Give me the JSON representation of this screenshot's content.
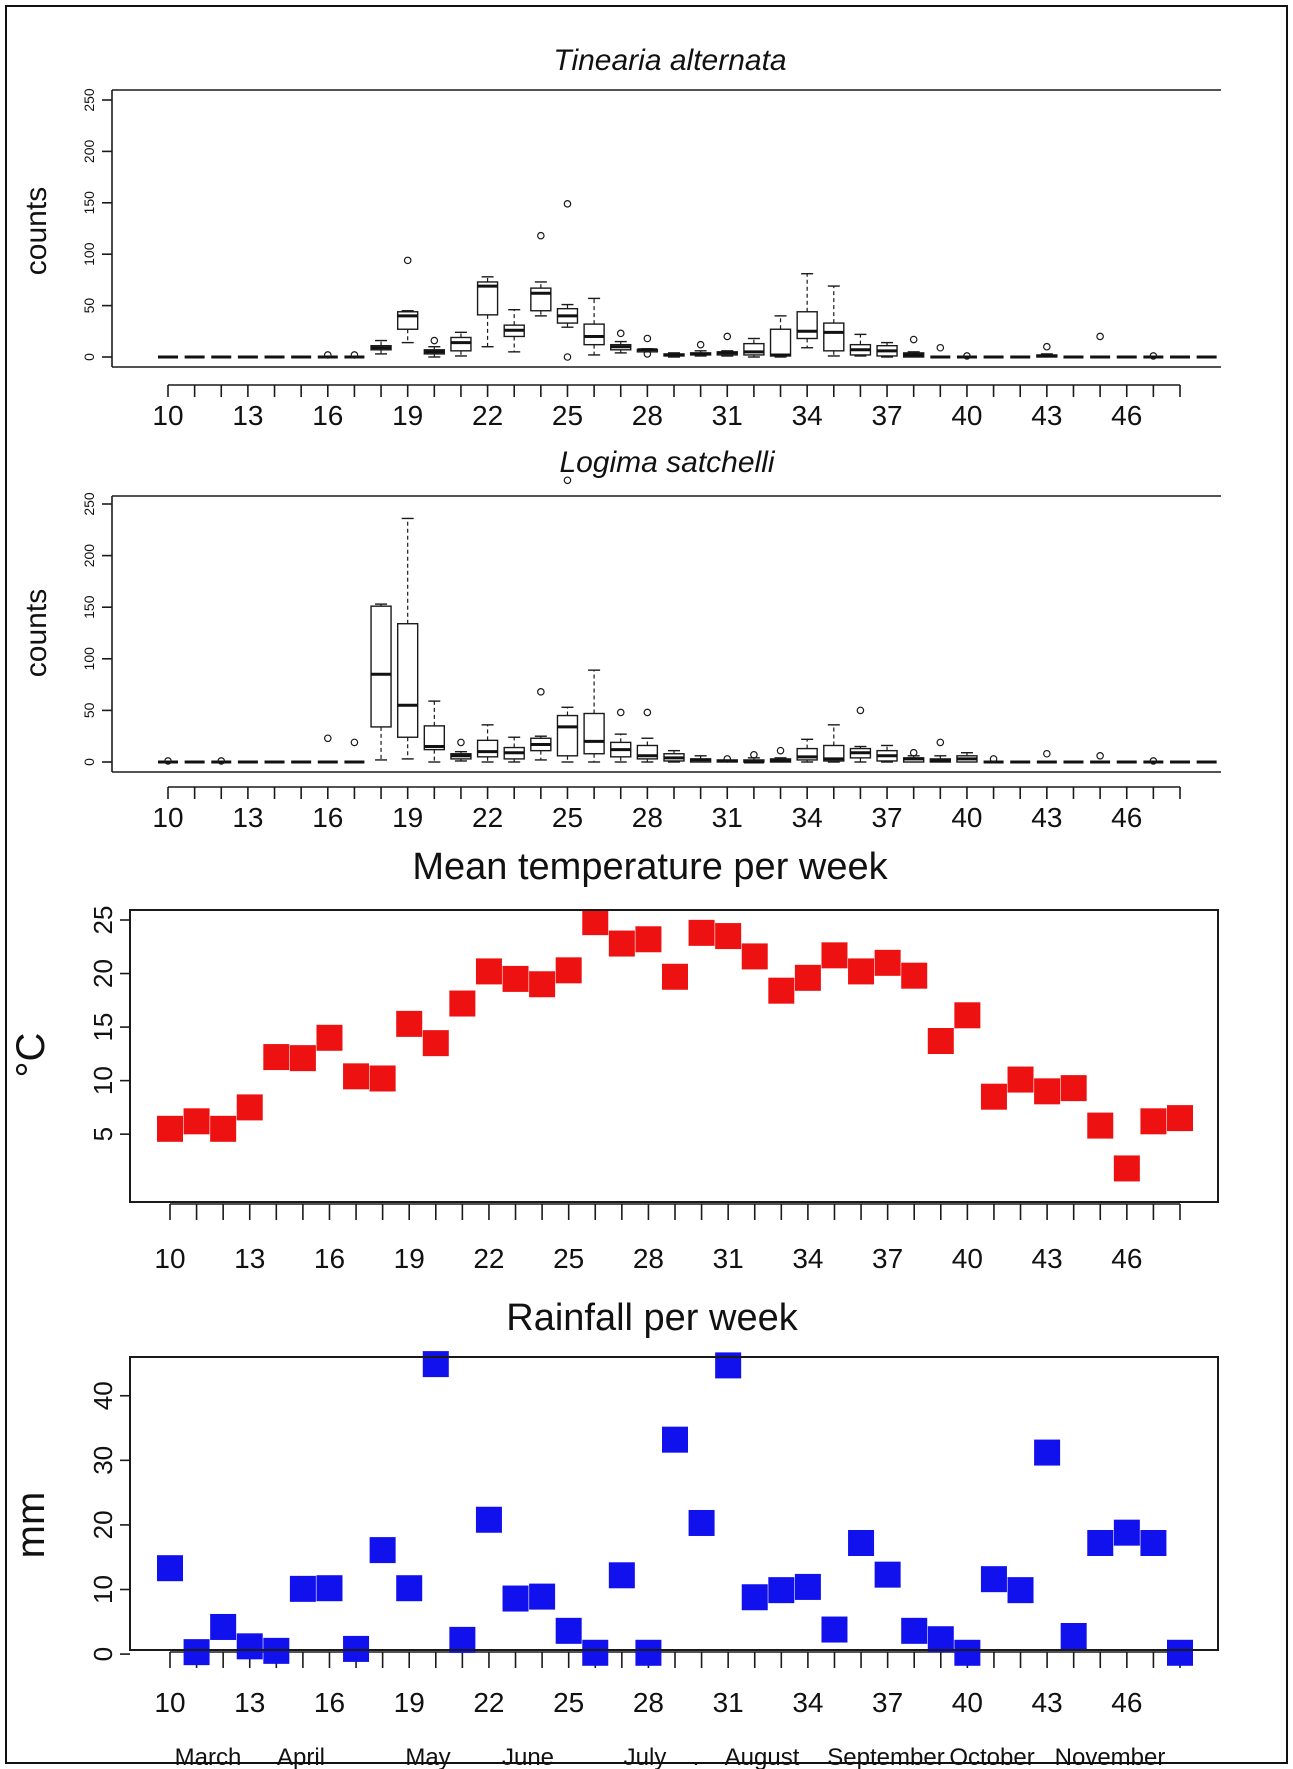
{
  "chart_data": [
    {
      "type": "box",
      "title": "Tinearia alternata",
      "ylabel": "counts",
      "ylim": [
        0,
        250
      ],
      "yticks": [
        0,
        50,
        100,
        150,
        200,
        250
      ],
      "xlim": [
        10,
        48
      ],
      "xticks": [
        10,
        13,
        16,
        19,
        22,
        25,
        28,
        31,
        34,
        37,
        40,
        43,
        46
      ],
      "boxes": [
        {
          "week": 10,
          "q1": 0,
          "med": 0,
          "q3": 0,
          "lo": 0,
          "hi": 0,
          "out": []
        },
        {
          "week": 11,
          "q1": 0,
          "med": 0,
          "q3": 0,
          "lo": 0,
          "hi": 0,
          "out": []
        },
        {
          "week": 12,
          "q1": 0,
          "med": 0,
          "q3": 0,
          "lo": 0,
          "hi": 0,
          "out": []
        },
        {
          "week": 13,
          "q1": 0,
          "med": 0,
          "q3": 0,
          "lo": 0,
          "hi": 0,
          "out": []
        },
        {
          "week": 14,
          "q1": 0,
          "med": 0,
          "q3": 0,
          "lo": 0,
          "hi": 0,
          "out": []
        },
        {
          "week": 15,
          "q1": 0,
          "med": 0,
          "q3": 0,
          "lo": 0,
          "hi": 0,
          "out": []
        },
        {
          "week": 16,
          "q1": 0,
          "med": 0,
          "q3": 0,
          "lo": 0,
          "hi": 0,
          "out": [
            2
          ]
        },
        {
          "week": 17,
          "q1": 0,
          "med": 0,
          "q3": 0,
          "lo": 0,
          "hi": 0,
          "out": [
            2
          ]
        },
        {
          "week": 18,
          "q1": 7,
          "med": 9,
          "q3": 11,
          "lo": 3,
          "hi": 16,
          "out": []
        },
        {
          "week": 19,
          "q1": 27,
          "med": 40,
          "q3": 44,
          "lo": 14,
          "hi": 45,
          "out": [
            94
          ]
        },
        {
          "week": 20,
          "q1": 3,
          "med": 5,
          "q3": 7,
          "lo": 0,
          "hi": 10,
          "out": [
            16
          ]
        },
        {
          "week": 21,
          "q1": 6,
          "med": 14,
          "q3": 19,
          "lo": 1,
          "hi": 24,
          "out": []
        },
        {
          "week": 22,
          "q1": 41,
          "med": 69,
          "q3": 73,
          "lo": 10,
          "hi": 78,
          "out": []
        },
        {
          "week": 23,
          "q1": 20,
          "med": 26,
          "q3": 31,
          "lo": 5,
          "hi": 46,
          "out": []
        },
        {
          "week": 24,
          "q1": 45,
          "med": 62,
          "q3": 67,
          "lo": 40,
          "hi": 73,
          "out": [
            118
          ]
        },
        {
          "week": 25,
          "q1": 33,
          "med": 40,
          "q3": 47,
          "lo": 29,
          "hi": 51,
          "out": [
            149,
            0
          ]
        },
        {
          "week": 26,
          "q1": 12,
          "med": 20,
          "q3": 32,
          "lo": 2,
          "hi": 57,
          "out": []
        },
        {
          "week": 27,
          "q1": 7,
          "med": 10,
          "q3": 12,
          "lo": 4,
          "hi": 15,
          "out": [
            23
          ]
        },
        {
          "week": 28,
          "q1": 5,
          "med": 7,
          "q3": 7,
          "lo": 5,
          "hi": 8,
          "out": [
            18,
            3
          ]
        },
        {
          "week": 29,
          "q1": 1,
          "med": 2,
          "q3": 3,
          "lo": 0,
          "hi": 4,
          "out": []
        },
        {
          "week": 30,
          "q1": 2,
          "med": 3,
          "q3": 4,
          "lo": 1,
          "hi": 6,
          "out": [
            12
          ]
        },
        {
          "week": 31,
          "q1": 2,
          "med": 4,
          "q3": 5,
          "lo": 1,
          "hi": 6,
          "out": [
            20
          ]
        },
        {
          "week": 32,
          "q1": 2,
          "med": 5,
          "q3": 13,
          "lo": 0,
          "hi": 18,
          "out": []
        },
        {
          "week": 33,
          "q1": 1,
          "med": 2,
          "q3": 27,
          "lo": 0,
          "hi": 40,
          "out": []
        },
        {
          "week": 34,
          "q1": 18,
          "med": 25,
          "q3": 44,
          "lo": 9,
          "hi": 81,
          "out": []
        },
        {
          "week": 35,
          "q1": 6,
          "med": 24,
          "q3": 33,
          "lo": 1,
          "hi": 69,
          "out": []
        },
        {
          "week": 36,
          "q1": 2,
          "med": 7,
          "q3": 12,
          "lo": 1,
          "hi": 22,
          "out": []
        },
        {
          "week": 37,
          "q1": 1,
          "med": 6,
          "q3": 11,
          "lo": 0,
          "hi": 14,
          "out": []
        },
        {
          "week": 38,
          "q1": 0,
          "med": 2,
          "q3": 4,
          "lo": 0,
          "hi": 5,
          "out": [
            17
          ]
        },
        {
          "week": 39,
          "q1": 0,
          "med": 0,
          "q3": 0,
          "lo": 0,
          "hi": 0,
          "out": [
            9
          ]
        },
        {
          "week": 40,
          "q1": 0,
          "med": 0,
          "q3": 0,
          "lo": 0,
          "hi": 0,
          "out": [
            1
          ]
        },
        {
          "week": 41,
          "q1": 0,
          "med": 0,
          "q3": 0,
          "lo": 0,
          "hi": 0,
          "out": []
        },
        {
          "week": 42,
          "q1": 0,
          "med": 0,
          "q3": 0,
          "lo": 0,
          "hi": 0,
          "out": []
        },
        {
          "week": 43,
          "q1": 0,
          "med": 1,
          "q3": 2,
          "lo": 0,
          "hi": 3,
          "out": [
            10
          ]
        },
        {
          "week": 44,
          "q1": 0,
          "med": 0,
          "q3": 0,
          "lo": 0,
          "hi": 0,
          "out": []
        },
        {
          "week": 45,
          "q1": 0,
          "med": 0,
          "q3": 0,
          "lo": 0,
          "hi": 0,
          "out": [
            20
          ]
        },
        {
          "week": 46,
          "q1": 0,
          "med": 0,
          "q3": 0,
          "lo": 0,
          "hi": 0,
          "out": []
        },
        {
          "week": 47,
          "q1": 0,
          "med": 0,
          "q3": 0,
          "lo": 0,
          "hi": 0,
          "out": [
            1
          ]
        },
        {
          "week": 48,
          "q1": 0,
          "med": 0,
          "q3": 0,
          "lo": 0,
          "hi": 0,
          "out": []
        },
        {
          "week": 49,
          "q1": 0,
          "med": 0,
          "q3": 0,
          "lo": 0,
          "hi": 0,
          "out": []
        }
      ]
    },
    {
      "type": "box",
      "title": "Logima satchelli",
      "ylabel": "counts",
      "ylim": [
        0,
        250
      ],
      "yticks": [
        0,
        50,
        100,
        150,
        200,
        250
      ],
      "xlim": [
        10,
        48
      ],
      "xticks": [
        10,
        13,
        16,
        19,
        22,
        25,
        28,
        31,
        34,
        37,
        40,
        43,
        46
      ],
      "boxes": [
        {
          "week": 10,
          "q1": 0,
          "med": 0,
          "q3": 0,
          "lo": 0,
          "hi": 0,
          "out": [
            1
          ]
        },
        {
          "week": 11,
          "q1": 0,
          "med": 0,
          "q3": 0,
          "lo": 0,
          "hi": 0,
          "out": []
        },
        {
          "week": 12,
          "q1": 0,
          "med": 0,
          "q3": 0,
          "lo": 0,
          "hi": 0,
          "out": [
            1
          ]
        },
        {
          "week": 13,
          "q1": 0,
          "med": 0,
          "q3": 0,
          "lo": 0,
          "hi": 0,
          "out": []
        },
        {
          "week": 14,
          "q1": 0,
          "med": 0,
          "q3": 0,
          "lo": 0,
          "hi": 0,
          "out": []
        },
        {
          "week": 15,
          "q1": 0,
          "med": 0,
          "q3": 0,
          "lo": 0,
          "hi": 0,
          "out": []
        },
        {
          "week": 16,
          "q1": 0,
          "med": 0,
          "q3": 0,
          "lo": 0,
          "hi": 0,
          "out": [
            23
          ]
        },
        {
          "week": 17,
          "q1": 0,
          "med": 0,
          "q3": 0,
          "lo": 0,
          "hi": 0,
          "out": [
            19
          ]
        },
        {
          "week": 18,
          "q1": 34,
          "med": 85,
          "q3": 151,
          "lo": 2,
          "hi": 153,
          "out": []
        },
        {
          "week": 19,
          "q1": 24,
          "med": 55,
          "q3": 134,
          "lo": 3,
          "hi": 236,
          "out": []
        },
        {
          "week": 20,
          "q1": 12,
          "med": 15,
          "q3": 35,
          "lo": 0,
          "hi": 59,
          "out": []
        },
        {
          "week": 21,
          "q1": 3,
          "med": 6,
          "q3": 8,
          "lo": 1,
          "hi": 10,
          "out": [
            19
          ]
        },
        {
          "week": 22,
          "q1": 5,
          "med": 10,
          "q3": 21,
          "lo": 0,
          "hi": 36,
          "out": []
        },
        {
          "week": 23,
          "q1": 3,
          "med": 9,
          "q3": 14,
          "lo": 0,
          "hi": 24,
          "out": []
        },
        {
          "week": 24,
          "q1": 11,
          "med": 17,
          "q3": 23,
          "lo": 2,
          "hi": 25,
          "out": [
            68
          ]
        },
        {
          "week": 25,
          "q1": 6,
          "med": 34,
          "q3": 45,
          "lo": 0,
          "hi": 53,
          "out": [
            273
          ]
        },
        {
          "week": 26,
          "q1": 8,
          "med": 20,
          "q3": 47,
          "lo": 0,
          "hi": 89,
          "out": []
        },
        {
          "week": 27,
          "q1": 5,
          "med": 12,
          "q3": 19,
          "lo": 0,
          "hi": 27,
          "out": [
            48
          ]
        },
        {
          "week": 28,
          "q1": 3,
          "med": 6,
          "q3": 16,
          "lo": 0,
          "hi": 23,
          "out": [
            48
          ]
        },
        {
          "week": 29,
          "q1": 1,
          "med": 4,
          "q3": 8,
          "lo": 0,
          "hi": 11,
          "out": []
        },
        {
          "week": 30,
          "q1": 0,
          "med": 2,
          "q3": 3,
          "lo": 0,
          "hi": 6,
          "out": []
        },
        {
          "week": 31,
          "q1": 0,
          "med": 1,
          "q3": 2,
          "lo": 0,
          "hi": 2,
          "out": [
            3
          ]
        },
        {
          "week": 32,
          "q1": 0,
          "med": 0,
          "q3": 2,
          "lo": 0,
          "hi": 4,
          "out": [
            7
          ]
        },
        {
          "week": 33,
          "q1": 0,
          "med": 1,
          "q3": 3,
          "lo": 0,
          "hi": 4,
          "out": [
            11
          ]
        },
        {
          "week": 34,
          "q1": 2,
          "med": 5,
          "q3": 13,
          "lo": 0,
          "hi": 22,
          "out": []
        },
        {
          "week": 35,
          "q1": 1,
          "med": 3,
          "q3": 16,
          "lo": 0,
          "hi": 36,
          "out": []
        },
        {
          "week": 36,
          "q1": 4,
          "med": 9,
          "q3": 13,
          "lo": 0,
          "hi": 15,
          "out": [
            50
          ]
        },
        {
          "week": 37,
          "q1": 1,
          "med": 6,
          "q3": 11,
          "lo": 0,
          "hi": 16,
          "out": []
        },
        {
          "week": 38,
          "q1": 0,
          "med": 3,
          "q3": 4,
          "lo": 0,
          "hi": 6,
          "out": [
            9
          ]
        },
        {
          "week": 39,
          "q1": 0,
          "med": 1,
          "q3": 3,
          "lo": 0,
          "hi": 6,
          "out": [
            19
          ]
        },
        {
          "week": 40,
          "q1": 0,
          "med": 3,
          "q3": 6,
          "lo": 0,
          "hi": 9,
          "out": []
        },
        {
          "week": 41,
          "q1": 0,
          "med": 0,
          "q3": 0,
          "lo": 0,
          "hi": 0,
          "out": [
            3
          ]
        },
        {
          "week": 42,
          "q1": 0,
          "med": 0,
          "q3": 0,
          "lo": 0,
          "hi": 0,
          "out": []
        },
        {
          "week": 43,
          "q1": 0,
          "med": 0,
          "q3": 0,
          "lo": 0,
          "hi": 0,
          "out": [
            8
          ]
        },
        {
          "week": 44,
          "q1": 0,
          "med": 0,
          "q3": 0,
          "lo": 0,
          "hi": 0,
          "out": []
        },
        {
          "week": 45,
          "q1": 0,
          "med": 0,
          "q3": 0,
          "lo": 0,
          "hi": 0,
          "out": [
            6
          ]
        },
        {
          "week": 46,
          "q1": 0,
          "med": 0,
          "q3": 0,
          "lo": 0,
          "hi": 0,
          "out": []
        },
        {
          "week": 47,
          "q1": 0,
          "med": 0,
          "q3": 0,
          "lo": 0,
          "hi": 0,
          "out": [
            1
          ]
        },
        {
          "week": 48,
          "q1": 0,
          "med": 0,
          "q3": 0,
          "lo": 0,
          "hi": 0,
          "out": []
        },
        {
          "week": 49,
          "q1": 0,
          "med": 0,
          "q3": 0,
          "lo": 0,
          "hi": 0,
          "out": []
        }
      ]
    },
    {
      "type": "scatter",
      "title": "Mean temperature per week",
      "ylabel": "°C",
      "ylim": [
        1,
        25
      ],
      "yticks": [
        5,
        10,
        15,
        20,
        25
      ],
      "xlim": [
        10,
        48
      ],
      "xticks": [
        10,
        13,
        16,
        19,
        22,
        25,
        28,
        31,
        34,
        37,
        40,
        43,
        46
      ],
      "color": "#ee1111",
      "x": [
        10,
        11,
        12,
        13,
        14,
        15,
        16,
        17,
        18,
        19,
        20,
        21,
        22,
        23,
        24,
        25,
        26,
        27,
        28,
        29,
        30,
        31,
        32,
        33,
        34,
        35,
        36,
        37,
        38,
        39,
        40,
        41,
        42,
        43,
        44,
        45,
        46,
        47,
        48
      ],
      "y": [
        5.5,
        6.2,
        5.5,
        7.5,
        12.2,
        12.1,
        14.0,
        10.4,
        10.2,
        15.3,
        13.5,
        17.2,
        20.2,
        19.5,
        19.0,
        20.3,
        24.8,
        22.8,
        23.2,
        19.7,
        23.8,
        23.5,
        21.6,
        18.4,
        19.6,
        21.7,
        20.2,
        21.0,
        19.8,
        13.7,
        16.1,
        8.5,
        10.1,
        9.0,
        9.3,
        5.8,
        1.8,
        6.2,
        6.5
      ]
    },
    {
      "type": "scatter",
      "title": "Rainfall per week",
      "ylabel": "mm",
      "ylim": [
        -2,
        46
      ],
      "yticks": [
        0,
        10,
        20,
        30,
        40
      ],
      "xlim": [
        10,
        48
      ],
      "xticks": [
        10,
        13,
        16,
        19,
        22,
        25,
        28,
        31,
        34,
        37,
        40,
        43,
        46
      ],
      "color": "#1111ee",
      "x": [
        10,
        11,
        12,
        13,
        14,
        15,
        16,
        17,
        18,
        19,
        20,
        21,
        22,
        23,
        24,
        25,
        26,
        27,
        28,
        29,
        30,
        31,
        32,
        33,
        34,
        35,
        36,
        37,
        38,
        39,
        40,
        41,
        42,
        43,
        44,
        45,
        46,
        47,
        48
      ],
      "y": [
        13.3,
        0.3,
        4.2,
        1.2,
        0.5,
        10.1,
        10.2,
        0.8,
        16.1,
        10.2,
        44.9,
        2.2,
        20.8,
        8.6,
        8.9,
        3.6,
        0.2,
        12.2,
        0.2,
        33.2,
        20.3,
        44.7,
        8.8,
        9.9,
        10.4,
        3.8,
        17.2,
        12.3,
        3.6,
        2.3,
        0.2,
        11.6,
        9.9,
        31.2,
        2.8,
        17.2,
        18.8,
        17.2,
        0.2
      ]
    }
  ],
  "months": [
    "March",
    "April",
    "May",
    "June",
    "July",
    ".",
    "August",
    "September",
    "October",
    "November"
  ]
}
